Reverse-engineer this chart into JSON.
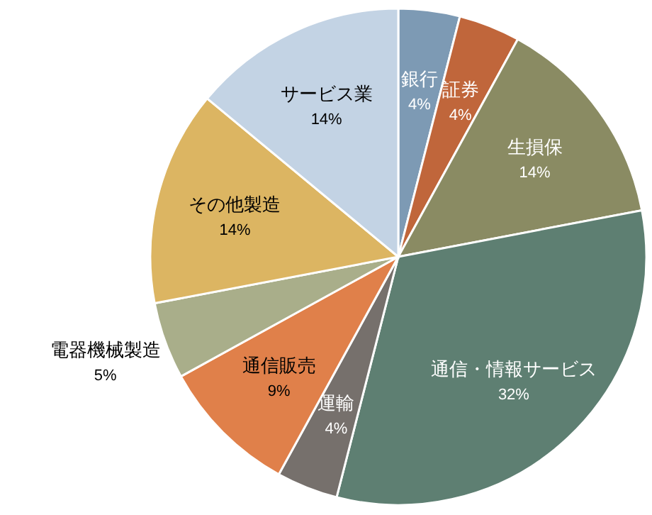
{
  "chart_data": {
    "type": "pie",
    "categories": [
      "銀行",
      "証券",
      "生損保",
      "通信・情報サービス",
      "運輸",
      "通信販売",
      "電器機械製造",
      "その他製造",
      "サービス業"
    ],
    "values": [
      4,
      4,
      14,
      32,
      4,
      9,
      5,
      14,
      14
    ],
    "value_labels": [
      "4%",
      "4%",
      "14%",
      "32%",
      "4%",
      "9%",
      "5%",
      "14%",
      "14%"
    ],
    "colors": [
      "#7d9ab4",
      "#c0663b",
      "#8a8b63",
      "#5e7f72",
      "#76706c",
      "#e0804a",
      "#a9ae8a",
      "#dcb562",
      "#c3d3e4"
    ]
  }
}
